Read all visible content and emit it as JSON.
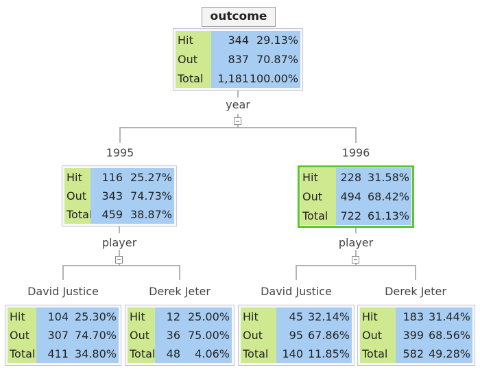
{
  "title": "outcome",
  "row_labels": [
    "Hit",
    "Out",
    "Total"
  ],
  "split_labels": {
    "root": "year",
    "n1995": "player",
    "n1996": "player"
  },
  "branch_labels": {
    "y1995": "1995",
    "y1996": "1996",
    "dj95": "David Justice",
    "dj95b": "Derek Jeter",
    "dj96": "David Justice",
    "dj96b": "Derek Jeter"
  },
  "nodes": {
    "root": {
      "hit": [
        "344",
        "29.13%"
      ],
      "out": [
        "837",
        "70.87%"
      ],
      "total": [
        "1,181",
        "100.00%"
      ]
    },
    "n1995": {
      "hit": [
        "116",
        "25.27%"
      ],
      "out": [
        "343",
        "74.73%"
      ],
      "total": [
        "459",
        "38.87%"
      ]
    },
    "n1996": {
      "hit": [
        "228",
        "31.58%"
      ],
      "out": [
        "494",
        "68.42%"
      ],
      "total": [
        "722",
        "61.13%"
      ]
    },
    "n1995_dj": {
      "hit": [
        "104",
        "25.30%"
      ],
      "out": [
        "307",
        "74.70%"
      ],
      "total": [
        "411",
        "34.80%"
      ]
    },
    "n1995_jeter": {
      "hit": [
        "12",
        "25.00%"
      ],
      "out": [
        "36",
        "75.00%"
      ],
      "total": [
        "48",
        "4.06%"
      ]
    },
    "n1996_dj": {
      "hit": [
        "45",
        "32.14%"
      ],
      "out": [
        "95",
        "67.86%"
      ],
      "total": [
        "140",
        "11.85%"
      ]
    },
    "n1996_jeter": {
      "hit": [
        "183",
        "31.44%"
      ],
      "out": [
        "399",
        "68.56%"
      ],
      "total": [
        "582",
        "49.28%"
      ]
    }
  },
  "colors": {
    "label_bg": "#cfe990",
    "value_bg": "#a8cdf2",
    "selected_border": "#5ac72e",
    "connector": "#9a9a9a"
  }
}
